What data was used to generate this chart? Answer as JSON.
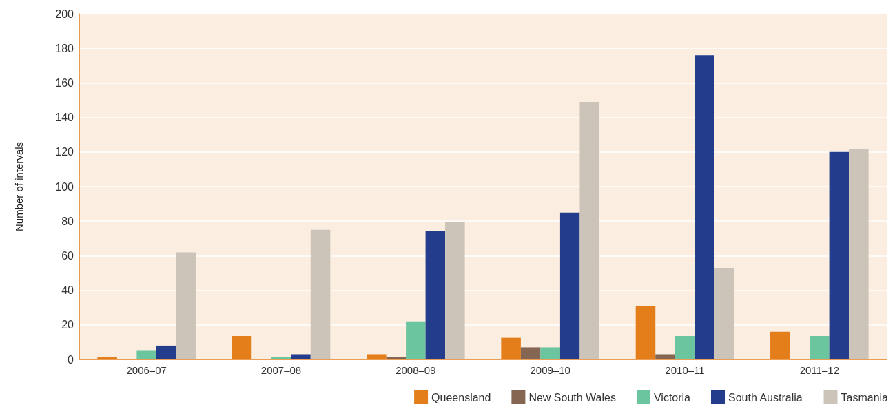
{
  "chart_data": {
    "type": "bar",
    "ylabel": "Number of intervals",
    "categories": [
      "2006–07",
      "2007–08",
      "2008–09",
      "2009–10",
      "2010–11",
      "2011–12"
    ],
    "series": [
      {
        "name": "Queensland",
        "color": "#e47e1b",
        "values": [
          1.5,
          13.5,
          3,
          12.5,
          31,
          16
        ]
      },
      {
        "name": "New South Wales",
        "color": "#846653",
        "values": [
          0,
          0,
          1.5,
          7,
          3,
          0
        ]
      },
      {
        "name": "Victoria",
        "color": "#6bc6a0",
        "values": [
          5,
          1.5,
          22,
          7,
          13.5,
          13.5
        ]
      },
      {
        "name": "South Australia",
        "color": "#233d8c",
        "values": [
          8,
          3,
          74.5,
          85,
          176,
          120
        ]
      },
      {
        "name": "Tasmania",
        "color": "#ccc4b8",
        "values": [
          62,
          75,
          79.5,
          149,
          53,
          121.5
        ]
      }
    ],
    "ylim": [
      0,
      200
    ],
    "yticks": [
      0,
      20,
      40,
      60,
      80,
      100,
      120,
      140,
      160,
      180,
      200
    ],
    "grid": "y",
    "legend": "bottom right"
  }
}
